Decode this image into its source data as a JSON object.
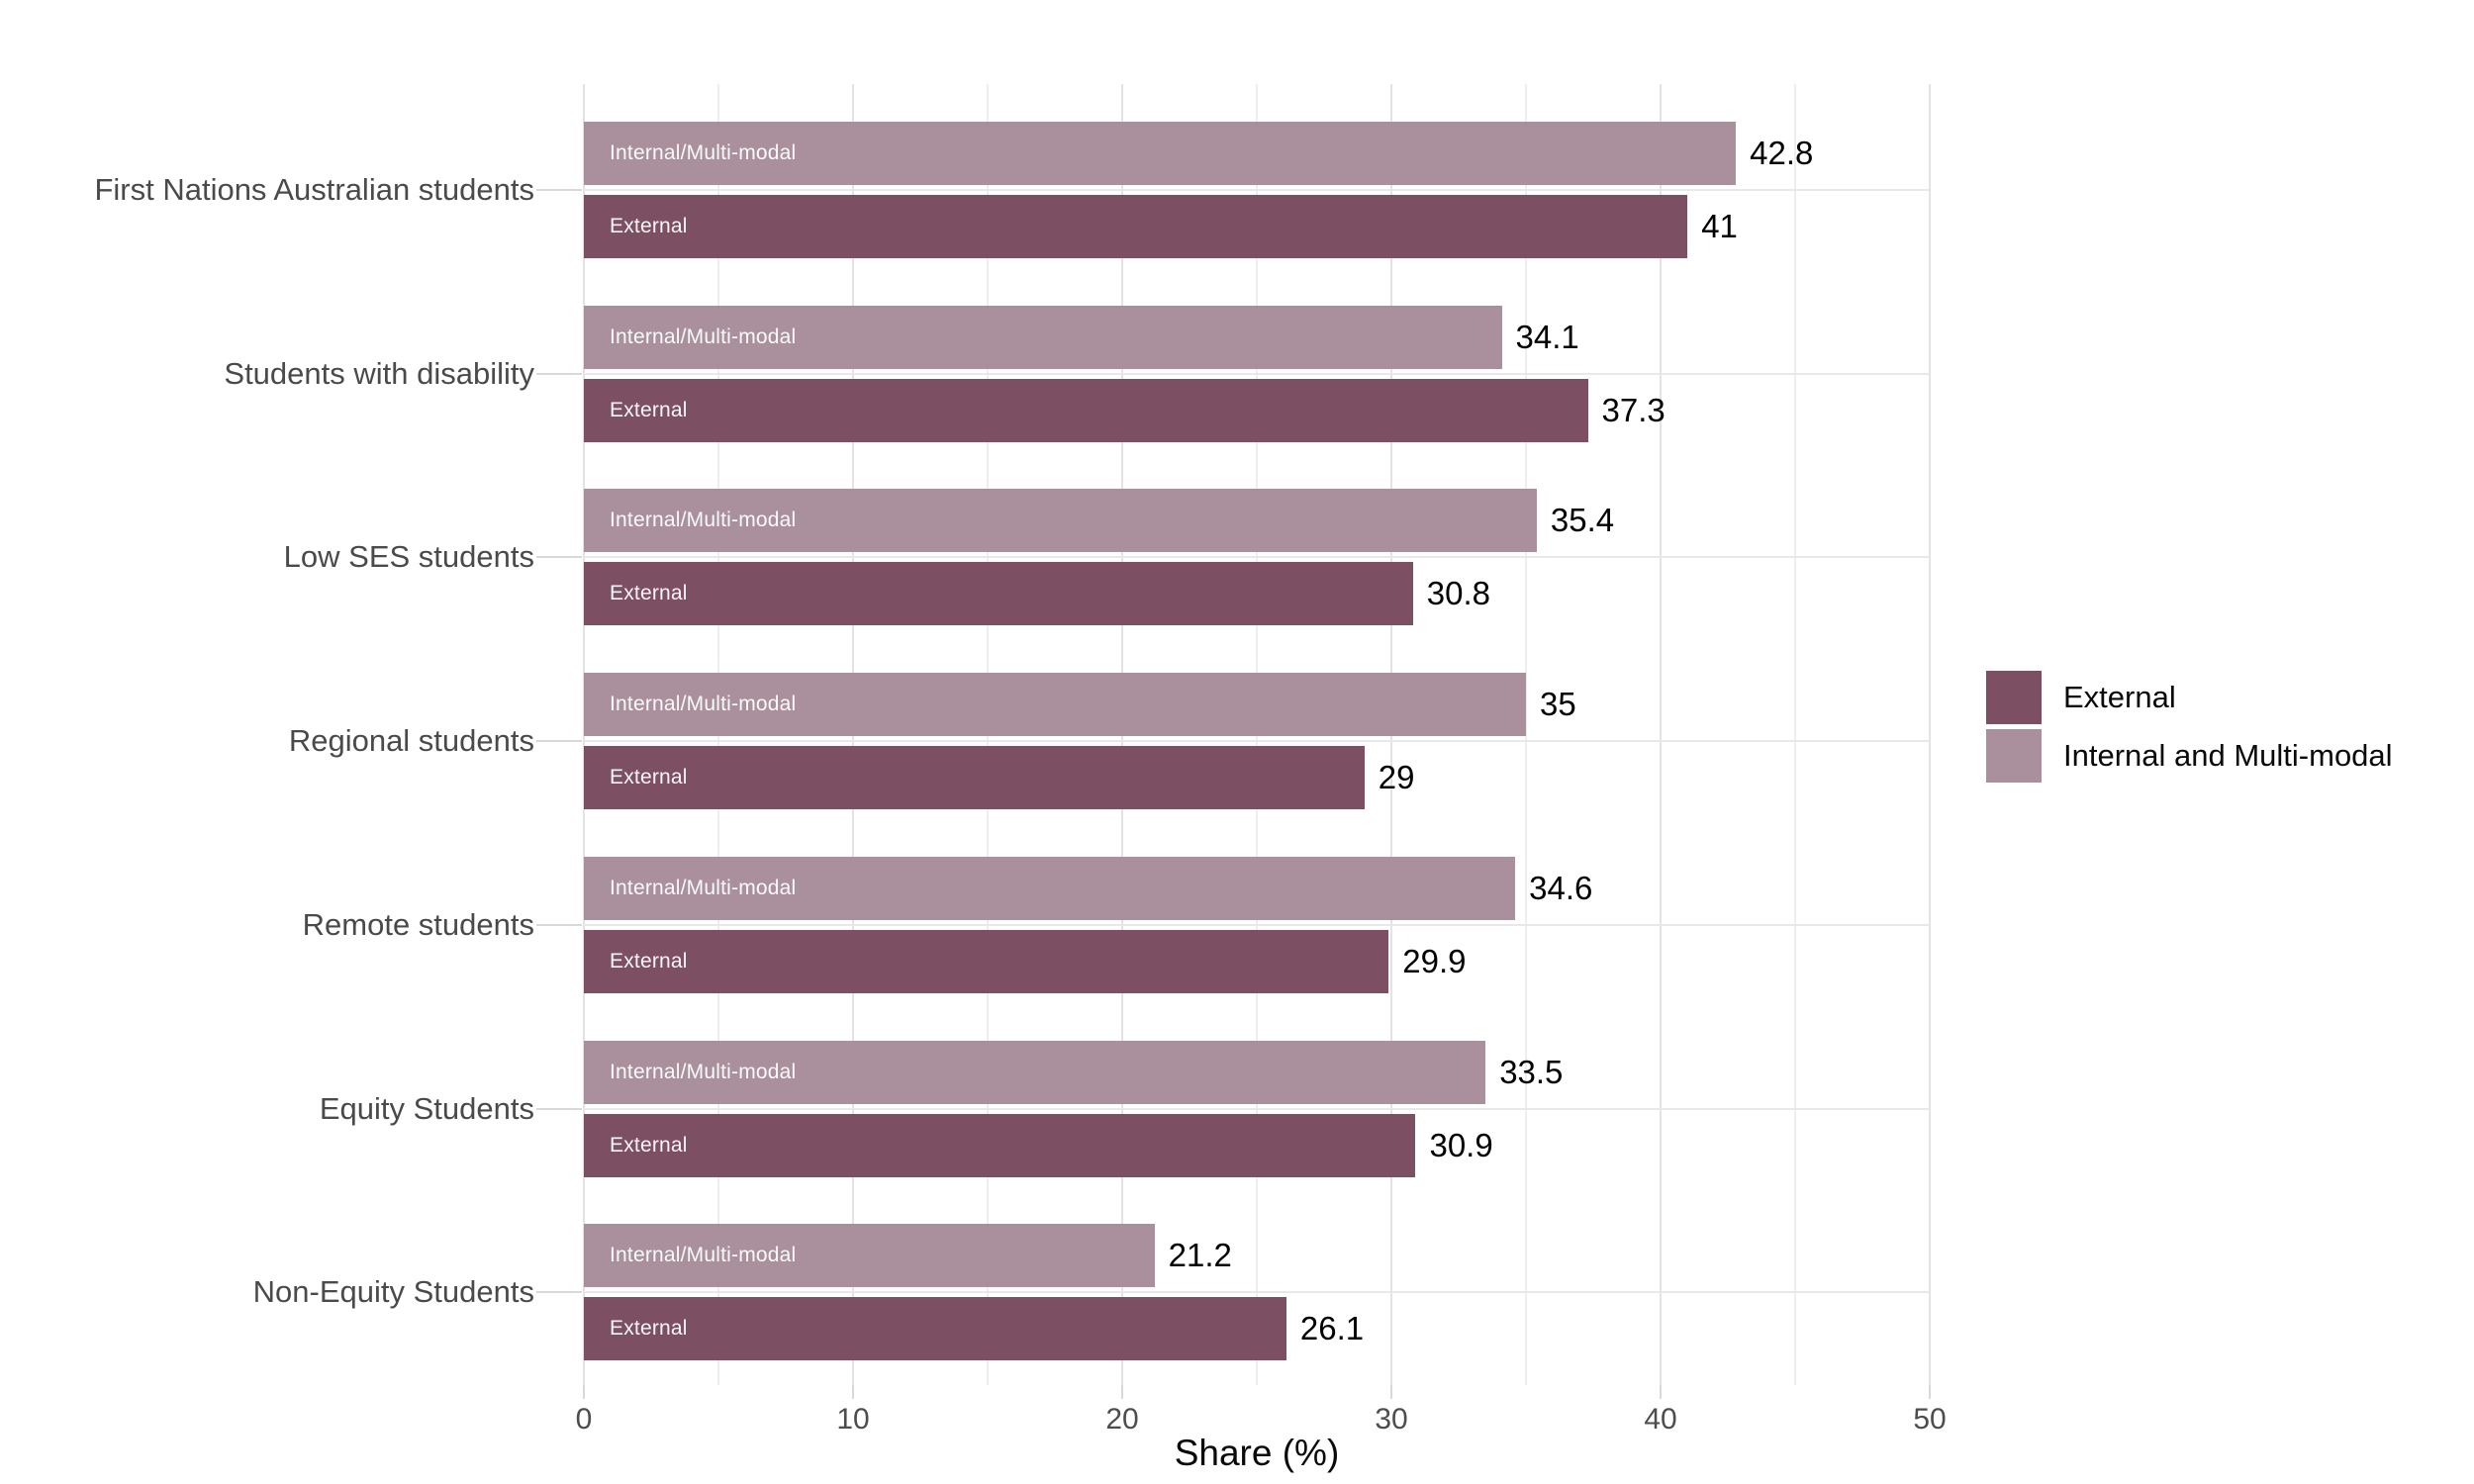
{
  "chart_data": {
    "type": "bar",
    "orientation": "horizontal",
    "title": "",
    "xlabel": "Share (%)",
    "ylabel": "",
    "xlim": [
      0,
      50
    ],
    "x_ticks": [
      0,
      10,
      20,
      30,
      40,
      50
    ],
    "x_tick_labels": [
      "0",
      "10",
      "20",
      "30",
      "40",
      "50"
    ],
    "minor_grid_step": 5,
    "grid": "vertical light-gray gridlines every 5 units; horizontal gridline at each category center",
    "legend_position": "right-middle",
    "categories": [
      "First Nations Australian students",
      "Students with disability",
      "Low SES students",
      "Regional students",
      "Remote students",
      "Equity Students",
      "Non-Equity Students"
    ],
    "series": [
      {
        "name": "Internal and Multi-modal",
        "bar_inner_label": "Internal/Multi-modal",
        "color": "#a9909c",
        "position_in_group": "top",
        "values": [
          42.8,
          34.1,
          35.4,
          35,
          34.6,
          33.5,
          21.2
        ],
        "value_labels": [
          "42.8",
          "34.1",
          "35.4",
          "35",
          "34.6",
          "33.5",
          "21.2"
        ]
      },
      {
        "name": "External",
        "bar_inner_label": "External",
        "color": "#7d4f63",
        "position_in_group": "bottom",
        "values": [
          41,
          37.3,
          30.8,
          29,
          29.9,
          30.9,
          26.1
        ],
        "value_labels": [
          "41",
          "37.3",
          "30.8",
          "29",
          "29.9",
          "30.9",
          "26.1"
        ]
      }
    ]
  },
  "legend": {
    "items": [
      {
        "label": "External",
        "color": "#7d4f63"
      },
      {
        "label": "Internal and Multi-modal",
        "color": "#a9909c"
      }
    ]
  },
  "colors": {
    "background": "#ffffff",
    "grid_major": "#e3e3e3",
    "grid_minor": "#eeeeee",
    "tick_mark": "#d9d9d9",
    "axis_text": "#4d4d4d",
    "category_text": "#4a4a4a",
    "value_text": "#000000",
    "bar_inner_text": "#ffffff"
  }
}
